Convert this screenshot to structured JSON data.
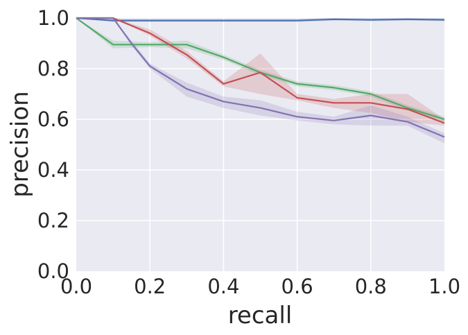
{
  "chart_data": {
    "type": "line",
    "xlabel": "recall",
    "ylabel": "precision",
    "xlim": [
      0.0,
      1.0
    ],
    "ylim": [
      0.0,
      1.0
    ],
    "xticks": [
      "0.0",
      "0.2",
      "0.4",
      "0.6",
      "0.8",
      "1.0"
    ],
    "yticks": [
      "0.0",
      "0.2",
      "0.4",
      "0.6",
      "0.8",
      "1.0"
    ],
    "grid": true,
    "style": "seaborn-darkgrid",
    "background_color": "#EAEAF2",
    "series": [
      {
        "color": "#4C72B0",
        "x": [
          0.0,
          0.1,
          0.2,
          0.3,
          0.4,
          0.5,
          0.6,
          0.7,
          0.8,
          0.9,
          1.0
        ],
        "y": [
          1.0,
          0.99,
          0.99,
          0.99,
          0.99,
          0.99,
          0.99,
          0.995,
          0.993,
          0.995,
          0.993
        ],
        "band_low": [
          1.0,
          0.985,
          0.985,
          0.985,
          0.985,
          0.985,
          0.985,
          0.99,
          0.988,
          0.99,
          0.988
        ],
        "band_high": [
          1.0,
          0.995,
          0.995,
          0.995,
          0.995,
          0.995,
          0.995,
          1.0,
          0.998,
          1.0,
          0.998
        ]
      },
      {
        "color": "#55A868",
        "x": [
          0.0,
          0.1,
          0.2,
          0.3,
          0.4,
          0.5,
          0.6,
          0.7,
          0.8,
          0.9,
          1.0
        ],
        "y": [
          1.0,
          0.895,
          0.895,
          0.895,
          0.845,
          0.785,
          0.74,
          0.725,
          0.7,
          0.645,
          0.6
        ],
        "band_low": [
          1.0,
          0.88,
          0.885,
          0.88,
          0.835,
          0.775,
          0.73,
          0.715,
          0.69,
          0.635,
          0.59
        ],
        "band_high": [
          1.0,
          0.91,
          0.905,
          0.91,
          0.855,
          0.795,
          0.75,
          0.735,
          0.71,
          0.655,
          0.61
        ]
      },
      {
        "color": "#C44E52",
        "x": [
          0.0,
          0.1,
          0.2,
          0.3,
          0.4,
          0.5,
          0.6,
          0.7,
          0.8,
          0.9,
          1.0
        ],
        "y": [
          1.0,
          1.0,
          0.94,
          0.855,
          0.74,
          0.785,
          0.685,
          0.665,
          0.665,
          0.64,
          0.585
        ],
        "band_low": [
          1.0,
          1.0,
          0.93,
          0.84,
          0.73,
          0.7,
          0.675,
          0.645,
          0.625,
          0.59,
          0.575
        ],
        "band_high": [
          1.0,
          1.0,
          0.955,
          0.87,
          0.75,
          0.86,
          0.7,
          0.68,
          0.7,
          0.7,
          0.6
        ]
      },
      {
        "color": "#8172B2",
        "x": [
          0.0,
          0.1,
          0.15,
          0.2,
          0.3,
          0.4,
          0.5,
          0.6,
          0.7,
          0.8,
          0.9,
          1.0
        ],
        "y": [
          1.0,
          1.0,
          0.9,
          0.81,
          0.72,
          0.67,
          0.645,
          0.61,
          0.595,
          0.615,
          0.59,
          0.53
        ],
        "band_low": [
          1.0,
          1.0,
          0.89,
          0.8,
          0.69,
          0.645,
          0.615,
          0.595,
          0.58,
          0.575,
          0.575,
          0.505
        ],
        "band_high": [
          1.0,
          1.0,
          0.91,
          0.82,
          0.745,
          0.69,
          0.675,
          0.63,
          0.61,
          0.655,
          0.61,
          0.545
        ]
      }
    ]
  }
}
